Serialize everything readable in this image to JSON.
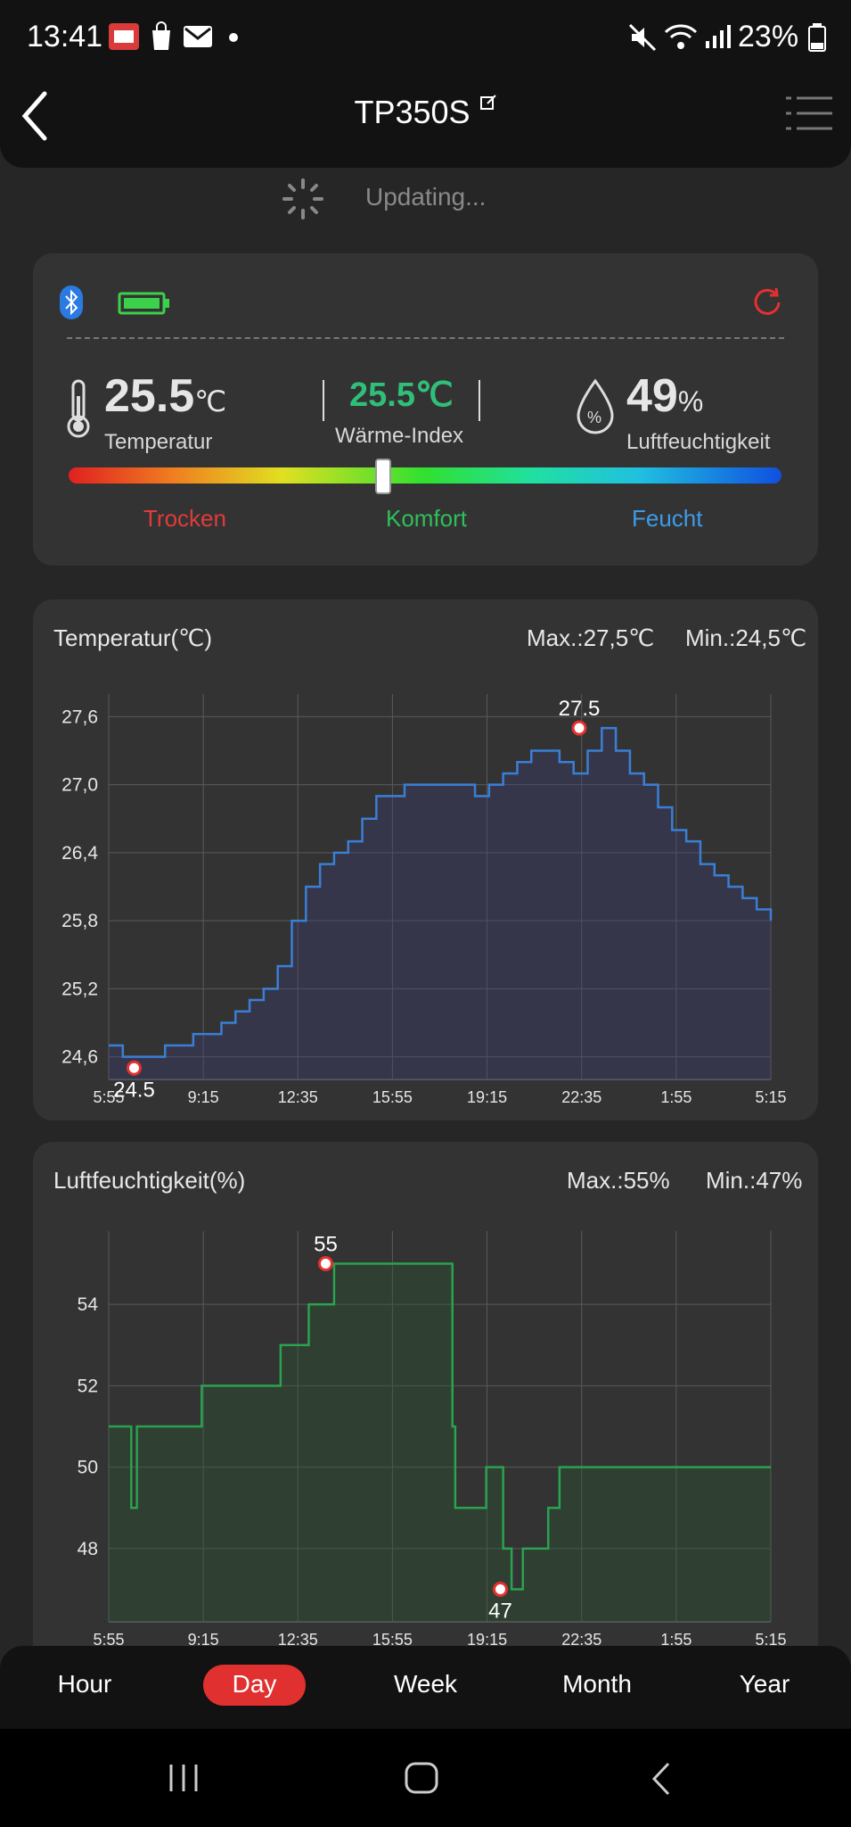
{
  "status_bar": {
    "time": "13:41",
    "battery": "23%"
  },
  "header": {
    "title": "TP350S",
    "updating": "Updating..."
  },
  "current": {
    "temperature": "25.5",
    "temperature_unit": "℃",
    "temperature_label": "Temperatur",
    "heat_index": "25.5℃",
    "heat_index_label": "Wärme-Index",
    "humidity": "49",
    "humidity_unit": "%",
    "humidity_label": "Luftfeuchtigkeit",
    "comfort_position": 0.44,
    "scale": {
      "dry": "Trocken",
      "comfort": "Komfort",
      "wet": "Feucht"
    }
  },
  "colors": {
    "dry": "#e03b3b",
    "comfort": "#2fbf5a",
    "wet": "#3d9be9",
    "heat_index": "#2fbf78",
    "temp_line": "#3a7fd5",
    "hum_line": "#2aa24f",
    "accent": "#e53030"
  },
  "temp_chart": {
    "title": "Temperatur(℃)",
    "max": "Max.:27,5℃",
    "min": "Min.:24,5℃",
    "max_label": "27.5",
    "min_label": "24.5",
    "chart_data": {
      "type": "line",
      "x_ticks": [
        "5:55",
        "9:15",
        "12:35",
        "15:55",
        "19:15",
        "22:35",
        "1:55",
        "5:15"
      ],
      "y_ticks": [
        "27,6",
        "27,0",
        "26,4",
        "25,8",
        "25,2",
        "24,6"
      ],
      "ylim": [
        24.4,
        27.8
      ],
      "x": [
        0,
        0.3,
        0.5,
        1,
        1.5,
        2,
        2.5,
        3,
        3.5,
        4,
        4.5,
        5,
        5.5,
        6,
        6.5,
        7,
        7.5,
        8,
        8.5,
        9,
        9.5,
        10,
        10.5,
        11,
        11.5,
        12,
        12.5,
        13,
        13.5,
        14,
        14.5,
        15,
        15.5,
        16,
        16.5,
        17,
        17.5,
        18,
        18.5,
        19,
        19.5,
        20,
        20.5,
        21,
        21.5,
        22,
        22.5,
        23,
        23.5
      ],
      "y": [
        24.7,
        24.7,
        24.6,
        24.6,
        24.6,
        24.7,
        24.7,
        24.8,
        24.8,
        24.9,
        25.0,
        25.1,
        25.2,
        25.4,
        25.8,
        26.1,
        26.3,
        26.4,
        26.5,
        26.7,
        26.9,
        26.9,
        27.0,
        27.0,
        27.0,
        27.0,
        27.0,
        26.9,
        27.0,
        27.1,
        27.2,
        27.3,
        27.3,
        27.2,
        27.1,
        27.3,
        27.5,
        27.3,
        27.1,
        27.0,
        26.8,
        26.6,
        26.5,
        26.3,
        26.2,
        26.1,
        26.0,
        25.9,
        25.8
      ],
      "max_point": {
        "x": 16.7,
        "y": 27.5
      },
      "min_point": {
        "x": 0.9,
        "y": 24.5
      }
    }
  },
  "hum_chart": {
    "title": "Luftfeuchtigkeit(%)",
    "max": "Max.:55%",
    "min": "Min.:47%",
    "max_label": "55",
    "min_label": "47",
    "chart_data": {
      "type": "line",
      "x_ticks": [
        "5:55",
        "9:15",
        "12:35",
        "15:55",
        "19:15",
        "22:35",
        "1:55",
        "5:15"
      ],
      "y_ticks": [
        "54",
        "52",
        "50",
        "48"
      ],
      "ylim": [
        46.2,
        55.8
      ],
      "x": [
        0,
        0.5,
        0.8,
        1.0,
        3.2,
        3.3,
        5.1,
        6.1,
        7.1,
        7.7,
        8.0,
        11.8,
        12.2,
        12.3,
        12.9,
        13.4,
        14.0,
        14.3,
        14.7,
        15.6,
        16.0,
        23.5
      ],
      "y": [
        51,
        51,
        49,
        51,
        51,
        52,
        52,
        53,
        54,
        54,
        55,
        55,
        51,
        49,
        49,
        50,
        48,
        47,
        48,
        49,
        50,
        50
      ],
      "max_point": {
        "x": 7.7,
        "y": 55
      },
      "min_point": {
        "x": 13.9,
        "y": 47
      }
    }
  },
  "period_tabs": [
    {
      "label": "Hour",
      "active": false
    },
    {
      "label": "Day",
      "active": true
    },
    {
      "label": "Week",
      "active": false
    },
    {
      "label": "Month",
      "active": false
    },
    {
      "label": "Year",
      "active": false
    }
  ]
}
